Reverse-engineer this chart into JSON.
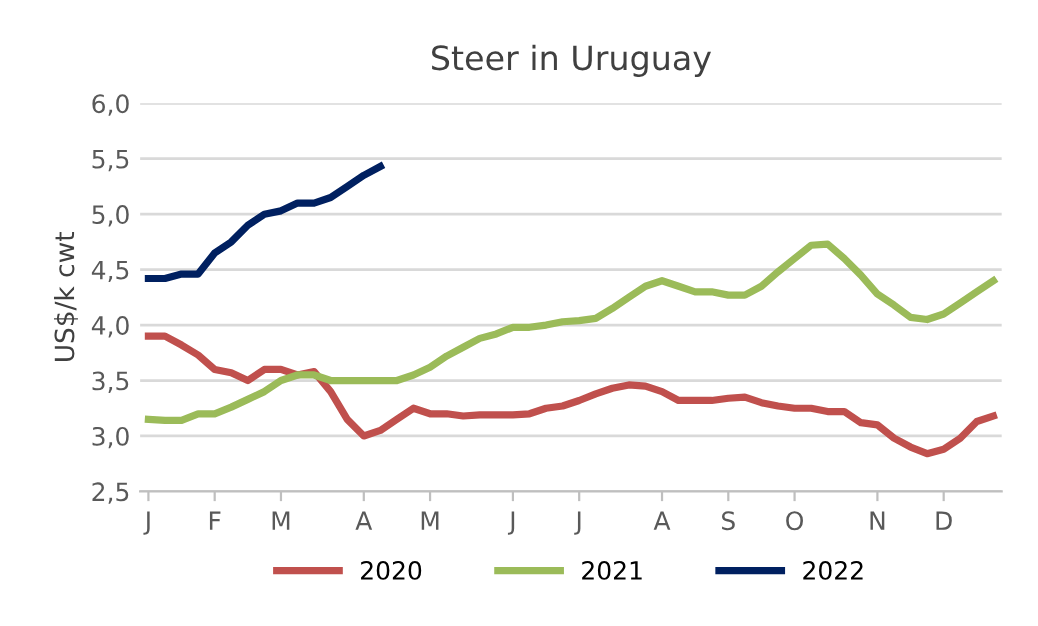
{
  "chart_data": {
    "type": "line",
    "title": "Steer in Uruguay",
    "ylabel": "US$/k cwt",
    "categories": [
      "J",
      null,
      null,
      null,
      "F",
      null,
      null,
      null,
      "M",
      null,
      null,
      null,
      null,
      "A",
      null,
      null,
      null,
      "M",
      null,
      null,
      null,
      null,
      "J",
      null,
      null,
      null,
      "J",
      null,
      null,
      null,
      null,
      "A",
      null,
      null,
      null,
      "S",
      null,
      null,
      null,
      "O",
      null,
      null,
      null,
      null,
      "N",
      null,
      null,
      null,
      "D",
      null,
      null,
      null
    ],
    "series": [
      {
        "name": "2020",
        "color": "#c0504d",
        "values": [
          3.9,
          3.9,
          3.82,
          3.73,
          3.6,
          3.57,
          3.5,
          3.6,
          3.6,
          3.55,
          3.58,
          3.4,
          3.15,
          3.0,
          3.05,
          3.15,
          3.25,
          3.2,
          3.2,
          3.18,
          3.19,
          3.19,
          3.19,
          3.2,
          3.25,
          3.27,
          3.32,
          3.38,
          3.43,
          3.46,
          3.45,
          3.4,
          3.32,
          3.32,
          3.32,
          3.34,
          3.35,
          3.3,
          3.27,
          3.25,
          3.25,
          3.22,
          3.22,
          3.12,
          3.1,
          2.98,
          2.9,
          2.84,
          2.88,
          2.98,
          3.13,
          3.18
        ]
      },
      {
        "name": "2021",
        "color": "#9bbb59",
        "values": [
          3.15,
          3.14,
          3.14,
          3.2,
          3.2,
          3.26,
          3.33,
          3.4,
          3.5,
          3.55,
          3.55,
          3.5,
          3.5,
          3.5,
          3.5,
          3.5,
          3.55,
          3.62,
          3.72,
          3.8,
          3.88,
          3.92,
          3.98,
          3.98,
          4.0,
          4.03,
          4.04,
          4.06,
          4.15,
          4.25,
          4.35,
          4.4,
          4.35,
          4.3,
          4.3,
          4.27,
          4.27,
          4.35,
          4.48,
          4.6,
          4.72,
          4.73,
          4.6,
          4.45,
          4.28,
          4.18,
          4.07,
          4.05,
          4.1,
          4.2,
          4.3,
          4.4
        ]
      },
      {
        "name": "2022",
        "color": "#002060",
        "values": [
          4.42,
          4.42,
          4.46,
          4.46,
          4.65,
          4.75,
          4.9,
          5.0,
          5.03,
          5.1,
          5.1,
          5.15,
          5.25,
          5.35,
          5.43,
          null,
          null,
          null,
          null,
          null,
          null,
          null,
          null,
          null,
          null,
          null,
          null,
          null,
          null,
          null,
          null,
          null,
          null,
          null,
          null,
          null,
          null,
          null,
          null,
          null,
          null,
          null,
          null,
          null,
          null,
          null,
          null,
          null,
          null,
          null,
          null,
          null
        ]
      }
    ],
    "ylim": [
      2.5,
      6.0
    ],
    "yticks": [
      {
        "value": 2.5,
        "label": "2,5"
      },
      {
        "value": 3.0,
        "label": "3,0"
      },
      {
        "value": 3.5,
        "label": "3,5"
      },
      {
        "value": 4.0,
        "label": "4,0"
      },
      {
        "value": 4.5,
        "label": "4,5"
      },
      {
        "value": 5.0,
        "label": "5,0"
      },
      {
        "value": 5.5,
        "label": "5,5"
      },
      {
        "value": 6.0,
        "label": "6,0"
      }
    ],
    "grid": "y",
    "legend": "bottom",
    "marker": "none",
    "line_style": "solid"
  }
}
